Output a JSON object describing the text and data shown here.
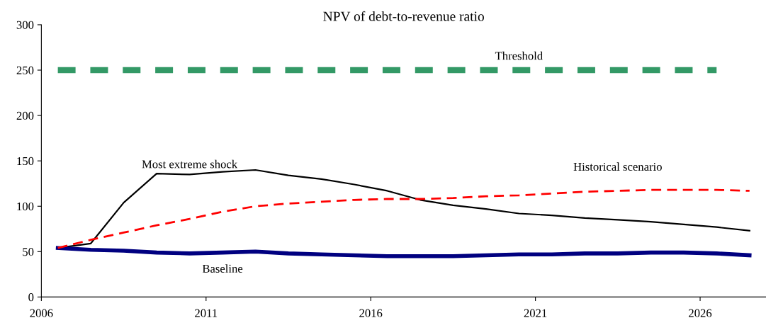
{
  "chart_data": {
    "type": "line",
    "title": "NPV of debt-to-revenue ratio",
    "x": [
      2006.5,
      2007.5,
      2008.5,
      2009.5,
      2010.5,
      2011.5,
      2012.5,
      2013.5,
      2014.5,
      2015.5,
      2016.5,
      2017.5,
      2018.5,
      2019.5,
      2020.5,
      2021.5,
      2022.5,
      2023.5,
      2024.5,
      2025.5,
      2026.5,
      2027.5
    ],
    "series": [
      {
        "name": "Threshold",
        "color": "#339966",
        "line_style": "dashed",
        "values": [
          250,
          250,
          250,
          250,
          250,
          250,
          250,
          250,
          250,
          250,
          250,
          250,
          250,
          250,
          250,
          250,
          250,
          250,
          250,
          250,
          250,
          null
        ]
      },
      {
        "name": "Most extreme shock",
        "color": "#000000",
        "line_style": "solid",
        "values": [
          54,
          59,
          104,
          136,
          135,
          138,
          140,
          134,
          130,
          124,
          117,
          107,
          101,
          97,
          92,
          90,
          87,
          85,
          83,
          80,
          77,
          73
        ]
      },
      {
        "name": "Historical scenario",
        "color": "#ff0000",
        "line_style": "dashed",
        "values": [
          54,
          63,
          71,
          79,
          86,
          94,
          100,
          103,
          105,
          107,
          108,
          108,
          109,
          111,
          112,
          114,
          116,
          117,
          118,
          118,
          118,
          117
        ]
      },
      {
        "name": "Baseline",
        "color": "#000080",
        "line_style": "solid",
        "values": [
          54,
          52,
          51,
          49,
          48,
          49,
          50,
          48,
          47,
          46,
          45,
          45,
          45,
          46,
          47,
          47,
          48,
          48,
          49,
          49,
          48,
          46
        ]
      }
    ],
    "xlim": [
      2006,
      2028
    ],
    "xticks": [
      2006,
      2011,
      2016,
      2021,
      2026
    ],
    "ylim": [
      0,
      300
    ],
    "yticks": [
      0,
      50,
      100,
      150,
      200,
      250,
      300
    ],
    "grid": false,
    "legend": false,
    "marker": "none"
  }
}
